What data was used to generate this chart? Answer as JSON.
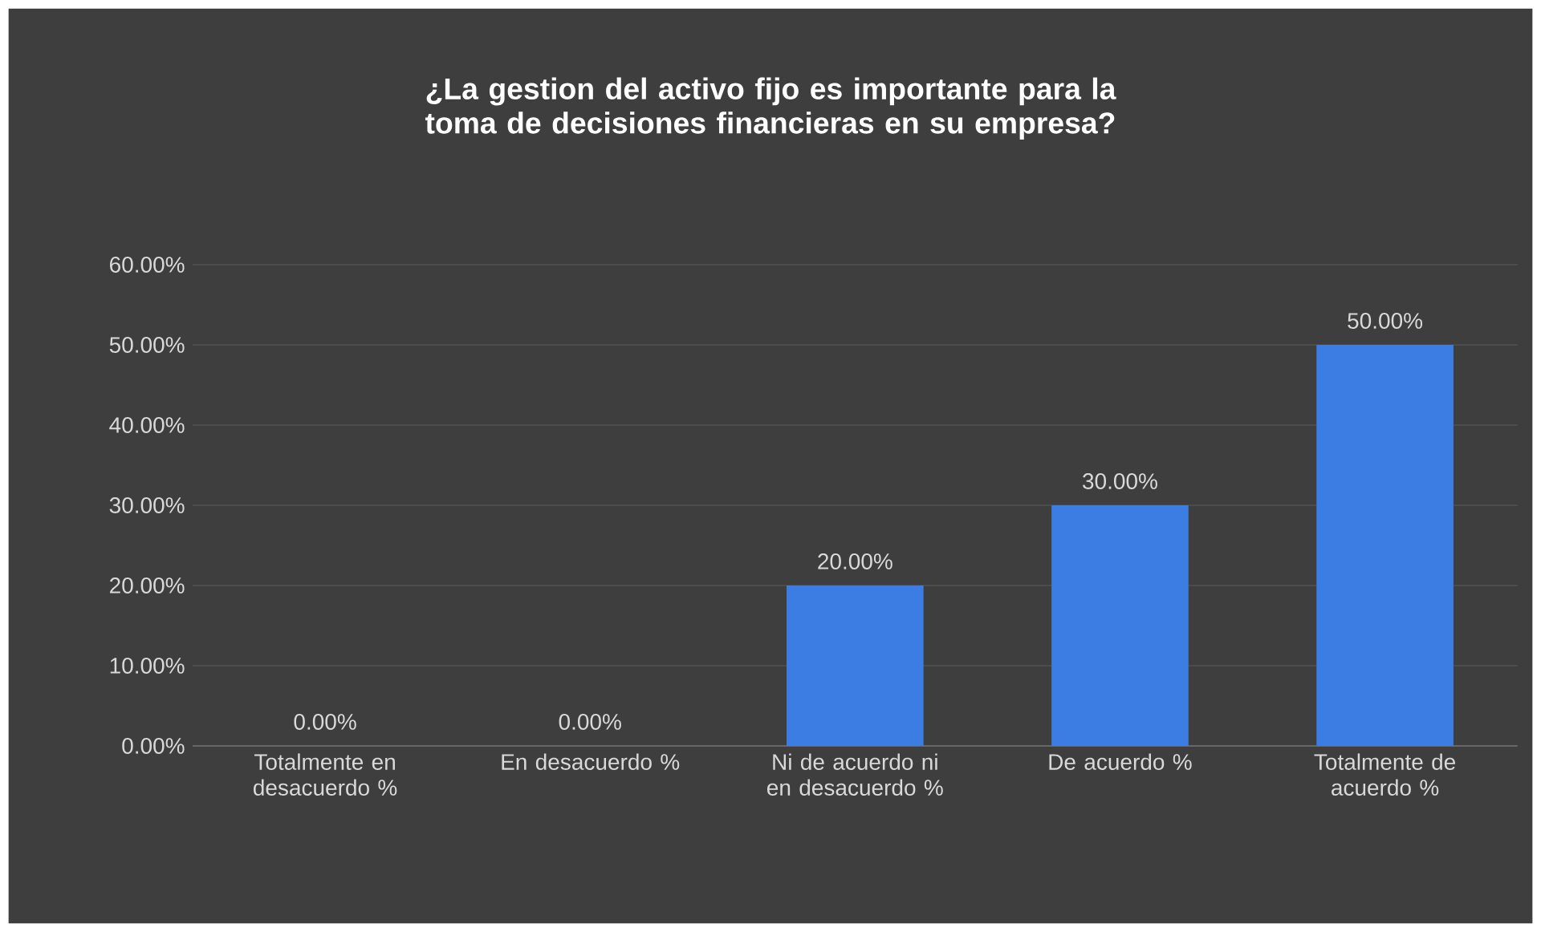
{
  "chart_data": {
    "type": "bar",
    "title": "¿La gestion del activo fijo es importante para la toma de decisiones financieras en su empresa?",
    "categories": [
      "Totalmente en desacuerdo %",
      "En desacuerdo %",
      "Ni de acuerdo ni en desacuerdo %",
      "De acuerdo %",
      "Totalmente de acuerdo %"
    ],
    "values": [
      0,
      0,
      20,
      30,
      50
    ],
    "value_labels": [
      "0.00%",
      "0.00%",
      "20.00%",
      "30.00%",
      "50.00%"
    ],
    "color": "#3b7de3",
    "ylim": [
      0,
      60
    ],
    "yticks": [
      {
        "value": 0,
        "label": "0.00%"
      },
      {
        "value": 10,
        "label": "10.00%"
      },
      {
        "value": 20,
        "label": "20.00%"
      },
      {
        "value": 30,
        "label": "30.00%"
      },
      {
        "value": 40,
        "label": "40.00%"
      },
      {
        "value": 50,
        "label": "50.00%"
      },
      {
        "value": 60,
        "label": "60.00%"
      }
    ],
    "grid": "y"
  }
}
